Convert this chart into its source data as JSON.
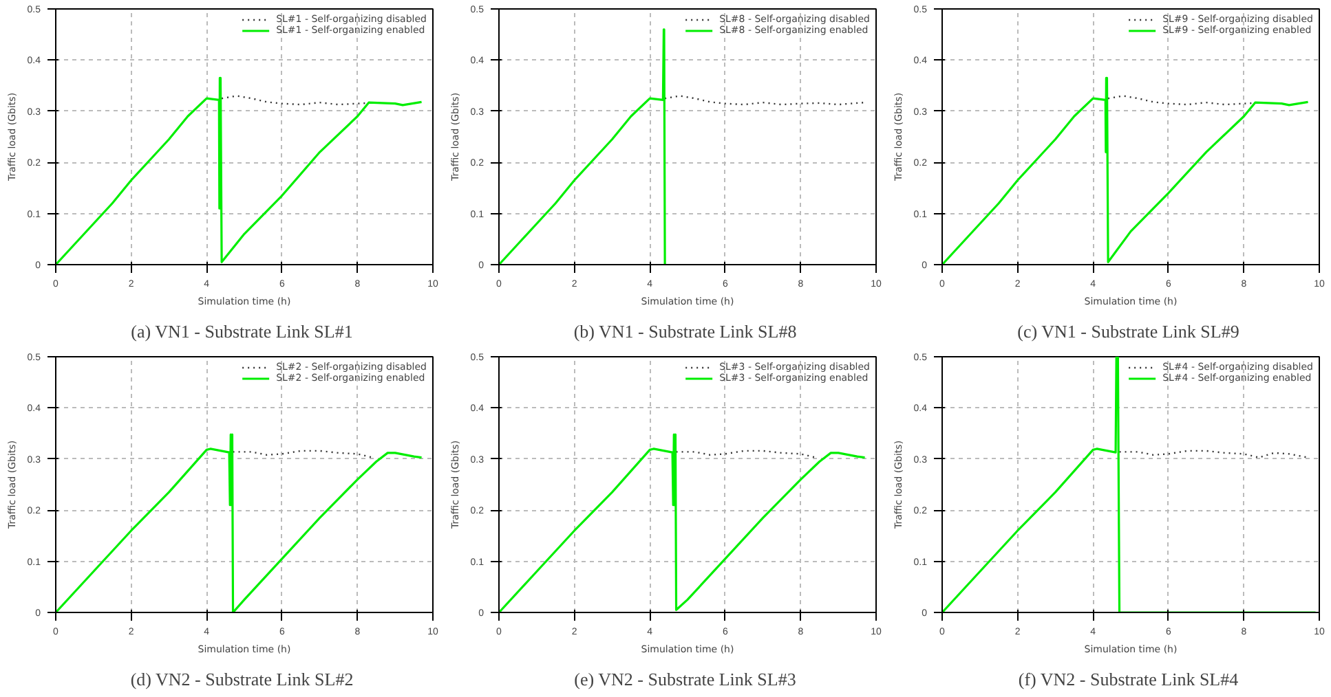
{
  "chart_data": [
    {
      "type": "line",
      "title": "(a)  VN1 - Substrate Link SL#1",
      "xlabel": "Simulation time (h)",
      "ylabel": "Traffic load (Gbits)",
      "xlim": [
        0,
        10
      ],
      "ylim": [
        0,
        0.5
      ],
      "xticks": [
        0,
        2,
        4,
        6,
        8,
        10
      ],
      "yticks": [
        0,
        0.1,
        0.2,
        0.3,
        0.4,
        0.5
      ],
      "grid": true,
      "legend": "top right",
      "series": [
        {
          "name": "SL#1 - Self-organizing disabled",
          "color": "#333333",
          "line_style": "dotted",
          "x": [
            4.4,
            4.8,
            5.2,
            5.6,
            6,
            6.5,
            7,
            7.5,
            8,
            8.3
          ],
          "values": [
            0.325,
            0.33,
            0.325,
            0.318,
            0.315,
            0.313,
            0.317,
            0.313,
            0.315,
            0.316
          ]
        },
        {
          "name": "SL#1 - Self-organizing enabled",
          "color": "#00ee00",
          "line_style": "solid",
          "x": [
            0,
            0.5,
            1,
            1.5,
            2,
            2.5,
            3,
            3.5,
            4,
            4.33,
            4.34,
            4.35,
            4.36,
            4.37,
            4.4,
            5,
            6,
            7,
            8,
            8.3,
            9,
            9.2,
            9.7
          ],
          "values": [
            0,
            0.04,
            0.08,
            0.12,
            0.165,
            0.205,
            0.245,
            0.29,
            0.325,
            0.322,
            0.11,
            0.365,
            0.11,
            0.365,
            0.005,
            0.06,
            0.135,
            0.22,
            0.29,
            0.317,
            0.315,
            0.312,
            0.318
          ]
        }
      ]
    },
    {
      "type": "line",
      "title": "(b)  VN1 - Substrate Link SL#8",
      "xlabel": "Simulation time (h)",
      "ylabel": "Traffic load (Gbits)",
      "xlim": [
        0,
        10
      ],
      "ylim": [
        0,
        0.5
      ],
      "xticks": [
        0,
        2,
        4,
        6,
        8,
        10
      ],
      "yticks": [
        0,
        0.1,
        0.2,
        0.3,
        0.4,
        0.5
      ],
      "grid": true,
      "legend": "top right",
      "series": [
        {
          "name": "SL#8 - Self-organizing disabled",
          "color": "#333333",
          "line_style": "dotted",
          "x": [
            4.4,
            4.8,
            5.2,
            5.6,
            6,
            6.5,
            7,
            7.5,
            8,
            8.5,
            9,
            9.5,
            9.7
          ],
          "values": [
            0.325,
            0.33,
            0.325,
            0.318,
            0.315,
            0.313,
            0.317,
            0.313,
            0.315,
            0.316,
            0.313,
            0.316,
            0.317
          ]
        },
        {
          "name": "SL#8 - Self-organizing enabled",
          "color": "#00ee00",
          "line_style": "solid",
          "x": [
            0,
            0.5,
            1,
            1.5,
            2,
            2.5,
            3,
            3.5,
            4,
            4.35,
            4.37,
            4.38,
            4.4
          ],
          "values": [
            0,
            0.04,
            0.08,
            0.12,
            0.165,
            0.205,
            0.245,
            0.29,
            0.325,
            0.322,
            0.46,
            0.46,
            0
          ]
        }
      ]
    },
    {
      "type": "line",
      "title": "(c)  VN1 - Substrate Link SL#9",
      "xlabel": "Simulation time (h)",
      "ylabel": "Traffic load (Gbits)",
      "xlim": [
        0,
        10
      ],
      "ylim": [
        0,
        0.5
      ],
      "xticks": [
        0,
        2,
        4,
        6,
        8,
        10
      ],
      "yticks": [
        0,
        0.1,
        0.2,
        0.3,
        0.4,
        0.5
      ],
      "grid": true,
      "legend": "top right",
      "series": [
        {
          "name": "SL#9 - Self-organizing disabled",
          "color": "#333333",
          "line_style": "dotted",
          "x": [
            4.4,
            4.8,
            5.2,
            5.6,
            6,
            6.5,
            7,
            7.5,
            8,
            8.3
          ],
          "values": [
            0.325,
            0.33,
            0.325,
            0.318,
            0.315,
            0.313,
            0.317,
            0.313,
            0.315,
            0.316
          ]
        },
        {
          "name": "SL#9 - Self-organizing enabled",
          "color": "#00ee00",
          "line_style": "solid",
          "x": [
            0,
            0.5,
            1,
            1.5,
            2,
            2.5,
            3,
            3.5,
            4,
            4.33,
            4.34,
            4.35,
            4.36,
            4.37,
            4.4,
            5,
            6,
            7,
            8,
            8.3,
            9,
            9.2,
            9.7
          ],
          "values": [
            0,
            0.04,
            0.08,
            0.12,
            0.165,
            0.205,
            0.245,
            0.29,
            0.325,
            0.322,
            0.22,
            0.365,
            0.22,
            0.365,
            0.005,
            0.065,
            0.14,
            0.22,
            0.29,
            0.317,
            0.315,
            0.312,
            0.318
          ]
        }
      ]
    },
    {
      "type": "line",
      "title": "(d)  VN2 - Substrate Link SL#2",
      "xlabel": "Simulation time (h)",
      "ylabel": "Traffic load (Gbits)",
      "xlim": [
        0,
        10
      ],
      "ylim": [
        0,
        0.5
      ],
      "xticks": [
        0,
        2,
        4,
        6,
        8,
        10
      ],
      "yticks": [
        0,
        0.1,
        0.2,
        0.3,
        0.4,
        0.5
      ],
      "grid": true,
      "legend": "top right",
      "series": [
        {
          "name": "SL#2 - Self-organizing disabled",
          "color": "#333333",
          "line_style": "dotted",
          "x": [
            4.7,
            5.2,
            5.6,
            6,
            6.5,
            7,
            7.5,
            8,
            8.4
          ],
          "values": [
            0.314,
            0.314,
            0.308,
            0.31,
            0.316,
            0.316,
            0.312,
            0.31,
            0.303
          ]
        },
        {
          "name": "SL#2 - Self-organizing enabled",
          "color": "#00ee00",
          "line_style": "solid",
          "x": [
            0,
            1,
            2,
            3,
            4,
            4.1,
            4.6,
            4.62,
            4.64,
            4.66,
            4.68,
            4.7,
            5,
            6,
            7,
            8,
            8.5,
            8.8,
            9,
            9.5,
            9.7
          ],
          "values": [
            0,
            0.08,
            0.16,
            0.235,
            0.318,
            0.32,
            0.313,
            0.21,
            0.348,
            0.21,
            0.348,
            0,
            0.025,
            0.105,
            0.185,
            0.26,
            0.295,
            0.312,
            0.312,
            0.305,
            0.303
          ]
        }
      ]
    },
    {
      "type": "line",
      "title": "(e)  VN2 - Substrate Link SL#3",
      "xlabel": "Simulation time (h)",
      "ylabel": "Traffic load (Gbits)",
      "xlim": [
        0,
        10
      ],
      "ylim": [
        0,
        0.5
      ],
      "xticks": [
        0,
        2,
        4,
        6,
        8,
        10
      ],
      "yticks": [
        0,
        0.1,
        0.2,
        0.3,
        0.4,
        0.5
      ],
      "grid": true,
      "legend": "top right",
      "series": [
        {
          "name": "SL#3 - Self-organizing disabled",
          "color": "#333333",
          "line_style": "dotted",
          "x": [
            4.7,
            5.2,
            5.6,
            6,
            6.5,
            7,
            7.5,
            8,
            8.4
          ],
          "values": [
            0.314,
            0.314,
            0.308,
            0.31,
            0.316,
            0.316,
            0.312,
            0.31,
            0.303
          ]
        },
        {
          "name": "SL#3 - Self-organizing enabled",
          "color": "#00ee00",
          "line_style": "solid",
          "x": [
            0,
            1,
            2,
            3,
            4,
            4.1,
            4.6,
            4.62,
            4.64,
            4.66,
            4.68,
            4.7,
            5,
            6,
            7,
            8,
            8.5,
            8.8,
            9,
            9.5,
            9.7
          ],
          "values": [
            0,
            0.08,
            0.16,
            0.235,
            0.318,
            0.32,
            0.313,
            0.21,
            0.348,
            0.21,
            0.348,
            0.005,
            0.025,
            0.105,
            0.185,
            0.26,
            0.295,
            0.312,
            0.312,
            0.305,
            0.303
          ]
        }
      ]
    },
    {
      "type": "line",
      "title": "(f)  VN2 - Substrate Link SL#4",
      "xlabel": "Simulation time (h)",
      "ylabel": "Traffic load (Gbits)",
      "xlim": [
        0,
        10
      ],
      "ylim": [
        0,
        0.5
      ],
      "xticks": [
        0,
        2,
        4,
        6,
        8,
        10
      ],
      "yticks": [
        0,
        0.1,
        0.2,
        0.3,
        0.4,
        0.5
      ],
      "grid": true,
      "legend": "top right",
      "series": [
        {
          "name": "SL#4 - Self-organizing disabled",
          "color": "#333333",
          "line_style": "dotted",
          "x": [
            4.7,
            5.2,
            5.6,
            6,
            6.5,
            7,
            7.5,
            8,
            8.4,
            8.8,
            9.2,
            9.7
          ],
          "values": [
            0.314,
            0.314,
            0.308,
            0.31,
            0.316,
            0.316,
            0.312,
            0.31,
            0.303,
            0.312,
            0.31,
            0.303
          ]
        },
        {
          "name": "SL#4 - Self-organizing enabled",
          "color": "#00ee00",
          "line_style": "solid",
          "x": [
            0,
            1,
            2,
            3,
            4,
            4.1,
            4.6,
            4.62,
            4.66,
            4.7,
            9.9
          ],
          "values": [
            0,
            0.08,
            0.16,
            0.235,
            0.318,
            0.32,
            0.313,
            0.5,
            0.5,
            0,
            0
          ]
        }
      ]
    }
  ]
}
